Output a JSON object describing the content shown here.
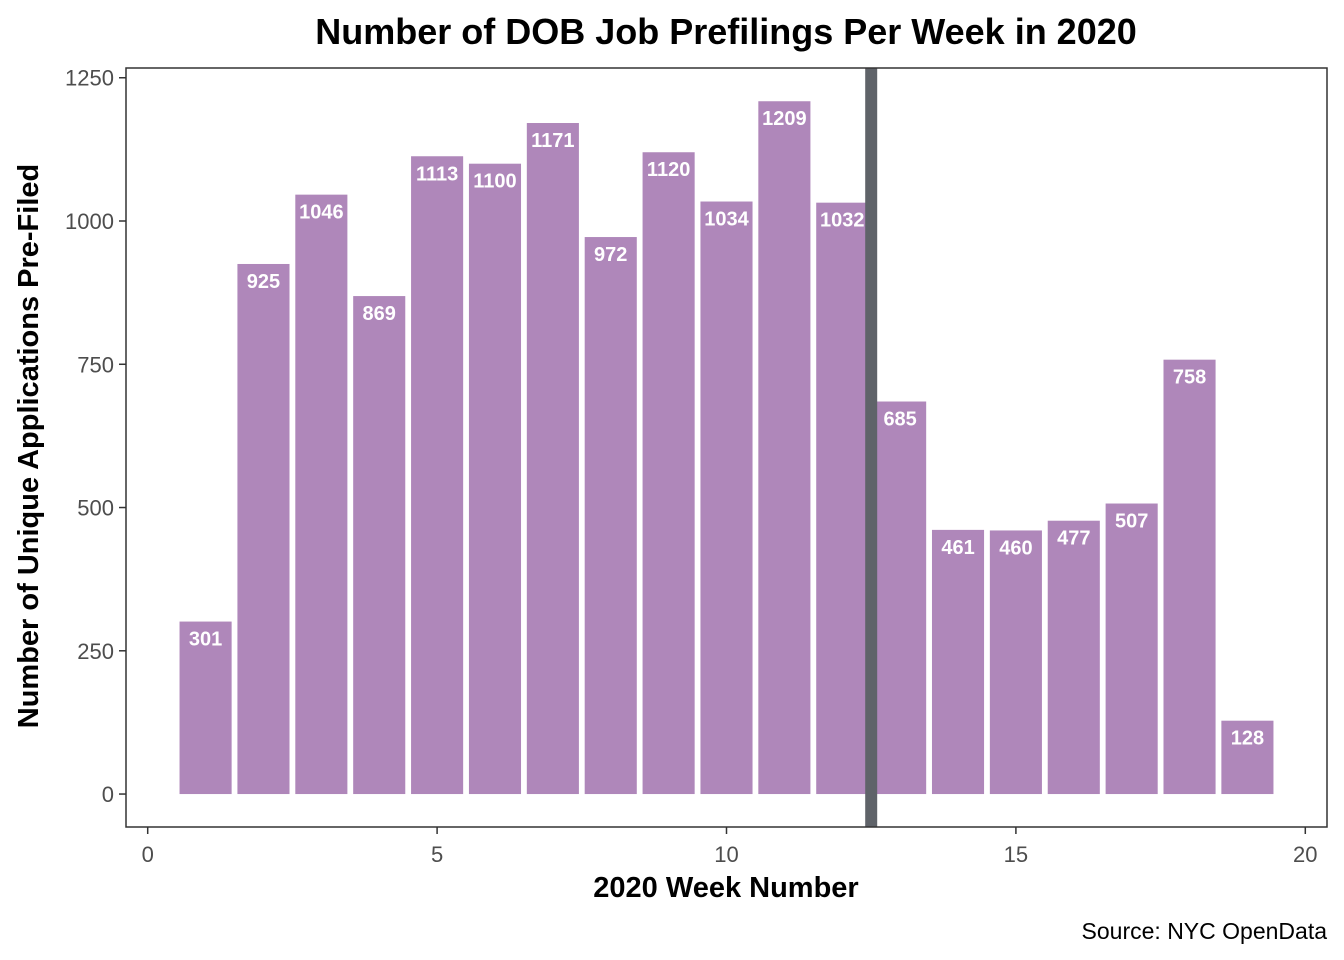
{
  "chart_data": {
    "type": "bar",
    "title": "Number of DOB Job Prefilings Per Week in 2020",
    "xlabel": "2020 Week Number",
    "ylabel": "Number of Unique Applications Pre-Filed",
    "caption": "Source: NYC OpenData",
    "x": [
      1,
      2,
      3,
      4,
      5,
      6,
      7,
      8,
      9,
      10,
      11,
      12,
      13,
      14,
      15,
      16,
      17,
      18,
      19
    ],
    "values": [
      301,
      925,
      1046,
      869,
      1113,
      1100,
      1171,
      972,
      1120,
      1034,
      1209,
      1032,
      685,
      461,
      460,
      477,
      507,
      758,
      128
    ],
    "data_labels": [
      "301",
      "925",
      "1046",
      "869",
      "1113",
      "1100",
      "1171",
      "972",
      "1120",
      "1034",
      "1209",
      "1032",
      "685",
      "461",
      "460",
      "477",
      "507",
      "758",
      "128"
    ],
    "xlim": [
      -0.375,
      20.375
    ],
    "ylim": [
      -57.5,
      1267
    ],
    "x_ticks": [
      0,
      5,
      10,
      15,
      20
    ],
    "x_tick_labels": [
      "0",
      "5",
      "10",
      "15",
      "20"
    ],
    "y_ticks": [
      0,
      250,
      500,
      750,
      1000,
      1250
    ],
    "y_tick_labels": [
      "0",
      "250",
      "500",
      "750",
      "1000",
      "1250"
    ],
    "reference_line_x": 12.5,
    "grid": false,
    "legend": "none",
    "colors": {
      "bar": "#af87ba",
      "bar_label": "#ffffff",
      "reference_line": "#5f6369",
      "panel_border": "#333333",
      "tick_text": "#4d4d4d"
    }
  }
}
